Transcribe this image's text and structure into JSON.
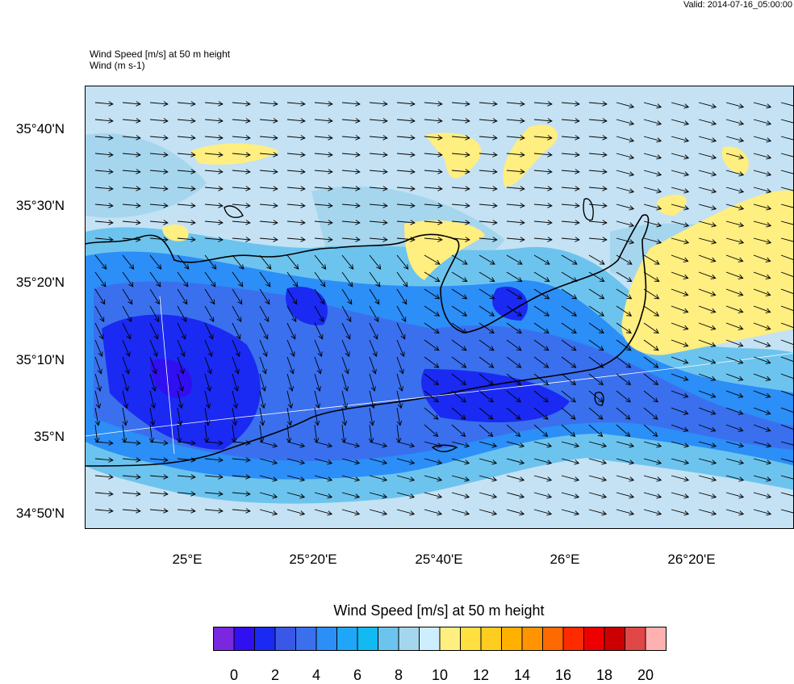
{
  "header": {
    "valid": "Valid: 2014-07-16_05:00:00",
    "field_title": "Wind Speed [m/s] at 50 m height",
    "vector_title": "Wind   (m s-1)"
  },
  "axes": {
    "lat_labels": [
      "35°40'N",
      "35°30'N",
      "35°20'N",
      "35°10'N",
      "35°N",
      "34°50'N"
    ],
    "lon_labels": [
      "25°E",
      "25°20'E",
      "25°40'E",
      "26°E",
      "26°20'E"
    ]
  },
  "colorbar": {
    "title": "Wind Speed [m/s] at 50 m height",
    "colors": [
      "#7a28e0",
      "#3010f0",
      "#1a2af2",
      "#3a58e6",
      "#3a70ee",
      "#2c8ef7",
      "#20a6f8",
      "#12baf2",
      "#6cc4ee",
      "#a6d6ee",
      "#cceeff",
      "#ffee80",
      "#ffe040",
      "#ffcc20",
      "#ffb000",
      "#ff9400",
      "#ff6a00",
      "#ff2a00",
      "#ee0000",
      "#cc0000",
      "#e04848",
      "#ffb0b0"
    ],
    "ticks": [
      "0",
      "2",
      "4",
      "6",
      "8",
      "10",
      "12",
      "14",
      "16",
      "18",
      "20"
    ]
  },
  "map": {
    "region": "Crete",
    "base_color": "#c4e2f4",
    "fill_colors": {
      "calm": "#3010f0",
      "weak": "#1a2af2",
      "low": "#3a70ee",
      "mid": "#2c8ef7",
      "mid2": "#6cc4ee",
      "light": "#a6d6ee",
      "strong": "#ffee80"
    }
  }
}
